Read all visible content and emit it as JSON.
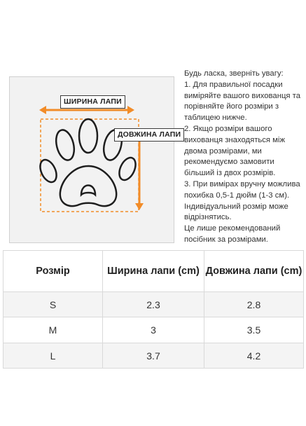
{
  "figure": {
    "width_label": "ШИРИНА ЛАПИ",
    "length_label": "ДОВЖИНА ЛАПИ",
    "paw_icon": "paw-print-icon",
    "accent_color": "#f28c28"
  },
  "notes": {
    "intro": "Будь ласка, зверніть увагу:",
    "item1": "1. Для правильної посадки виміряйте вашого вихованця та порівняйте його розміри з таблицею нижче.",
    "item2": "2. Якщо розміри вашого вихованця знаходяться між двома розмірами, ми рекомендуємо замовити більший із двох розмірів.",
    "item3": "3. При вимірах вручну можлива похибка 0,5-1 дюйм (1-3 см). Індивідуальний розмір може відрізнятись.",
    "outro": "Це лише рекомендований посібник за розмірами."
  },
  "table": {
    "headers": [
      "Розмір",
      "Ширина лапи (cm)",
      "Довжина лапи (cm)"
    ],
    "rows": [
      [
        "S",
        "2.3",
        "2.8"
      ],
      [
        "M",
        "3",
        "3.5"
      ],
      [
        "L",
        "3.7",
        "4.2"
      ]
    ]
  }
}
